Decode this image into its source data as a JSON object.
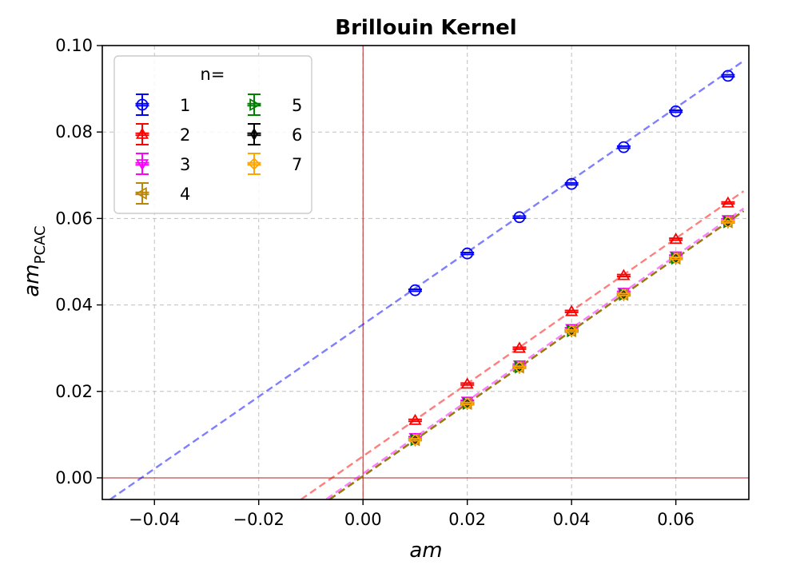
{
  "chart_data": {
    "type": "scatter",
    "title": "Brillouin Kernel",
    "xlabel": "am",
    "ylabel": "am",
    "ylabel_subscript": "PCAC",
    "xlim": [
      -0.05,
      0.074
    ],
    "ylim": [
      -0.005,
      0.1
    ],
    "x_ticks": [
      -0.04,
      -0.02,
      0.0,
      0.02,
      0.04,
      0.06
    ],
    "x_tick_labels": [
      "−0.04",
      "−0.02",
      "0.00",
      "0.02",
      "0.04",
      "0.06"
    ],
    "y_ticks": [
      0.0,
      0.02,
      0.04,
      0.06,
      0.08,
      0.1
    ],
    "y_tick_labels": [
      "0.00",
      "0.02",
      "0.04",
      "0.06",
      "0.08",
      "0.10"
    ],
    "grid": true,
    "reference_lines": {
      "x": 0,
      "y": 0,
      "color": "#b22222"
    },
    "legend": {
      "title": "n=",
      "position": "top-left",
      "columns": 2
    },
    "x": [
      0.01,
      0.02,
      0.03,
      0.04,
      0.05,
      0.06,
      0.07
    ],
    "series": [
      {
        "name": "1",
        "color": "#0000ff",
        "marker": "circle-open",
        "values": [
          0.0434,
          0.0519,
          0.0603,
          0.068,
          0.0765,
          0.0848,
          0.093
        ],
        "fit": {
          "slope": 0.835,
          "intercept": 0.0355,
          "x_start": -0.049,
          "x_end": 0.073
        }
      },
      {
        "name": "2",
        "color": "#ff0000",
        "marker": "triangle-up-open",
        "values": [
          0.0133,
          0.0217,
          0.03,
          0.0385,
          0.0468,
          0.0552,
          0.0636
        ],
        "fit": {
          "slope": 0.84,
          "intercept": 0.005,
          "x_start": -0.0125,
          "x_end": 0.073
        }
      },
      {
        "name": "3",
        "color": "#ff00ff",
        "marker": "triangle-down-open",
        "values": [
          0.0093,
          0.0177,
          0.0261,
          0.0345,
          0.0429,
          0.0513,
          0.0597
        ],
        "fit": {
          "slope": 0.84,
          "intercept": 0.001,
          "x_start": -0.007,
          "x_end": 0.073
        }
      },
      {
        "name": "4",
        "color": "#b8860b",
        "marker": "triangle-left-open",
        "values": [
          0.0088,
          0.0172,
          0.0256,
          0.034,
          0.0424,
          0.0508,
          0.0592
        ],
        "fit": {
          "slope": 0.84,
          "intercept": 0.0004,
          "x_start": -0.007,
          "x_end": 0.073
        }
      },
      {
        "name": "5",
        "color": "#008000",
        "marker": "triangle-right-open",
        "values": [
          0.0088,
          0.0172,
          0.0256,
          0.034,
          0.0424,
          0.0508,
          0.0592
        ],
        "fit": {
          "slope": 0.84,
          "intercept": 0.0004,
          "x_start": -0.007,
          "x_end": 0.073
        }
      },
      {
        "name": "6",
        "color": "#000000",
        "marker": "thin-diamond-open",
        "values": [
          0.0088,
          0.0172,
          0.0256,
          0.034,
          0.0424,
          0.0508,
          0.0592
        ],
        "fit": {
          "slope": 0.84,
          "intercept": 0.0004,
          "x_start": -0.007,
          "x_end": 0.073
        }
      },
      {
        "name": "7",
        "color": "#ffa500",
        "marker": "diamond-open",
        "values": [
          0.0088,
          0.0172,
          0.0256,
          0.034,
          0.0424,
          0.0508,
          0.0592
        ],
        "fit": {
          "slope": 0.84,
          "intercept": 0.0004,
          "x_start": -0.007,
          "x_end": 0.073
        }
      }
    ]
  }
}
